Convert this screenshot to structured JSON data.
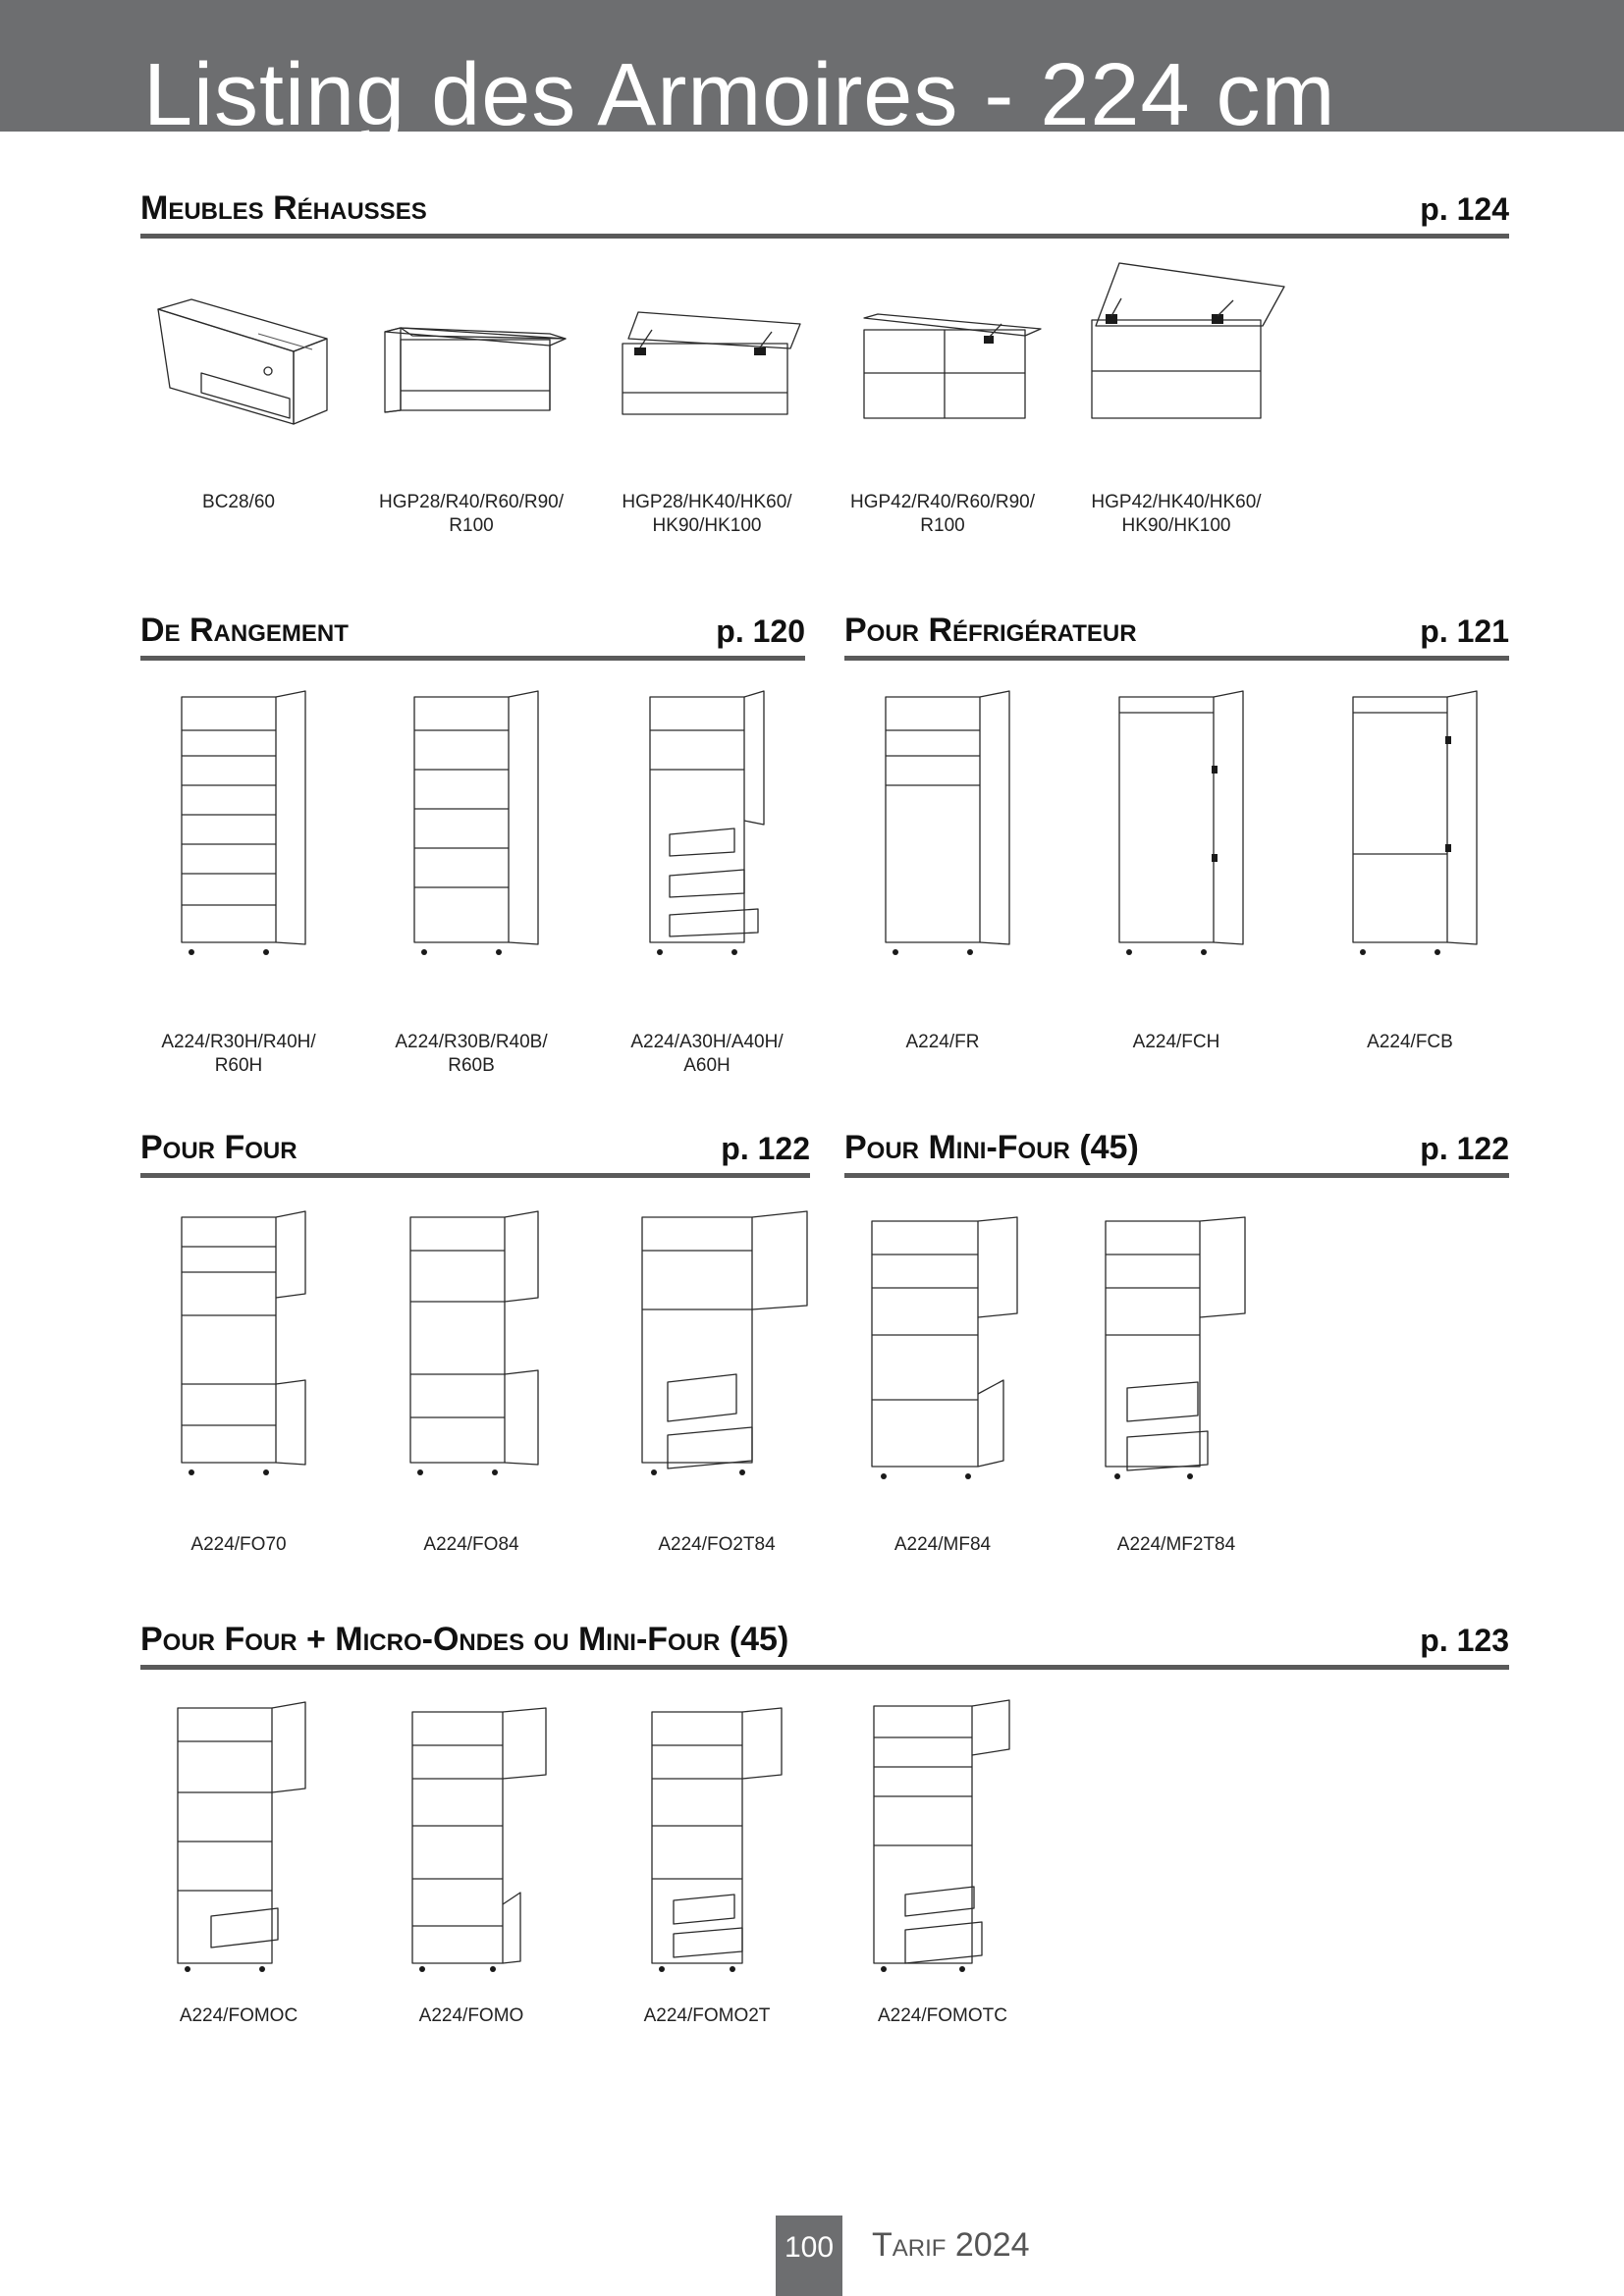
{
  "page": {
    "title": "Listing des Armoires - 224 cm",
    "page_number": "100",
    "footer_label": "Tarif 2024"
  },
  "sections": {
    "rehausses": {
      "title": "Meubles Réhausses",
      "page_ref": "p. 124",
      "items": [
        {
          "code": "BC28/60",
          "icon": "drawer-box-icon"
        },
        {
          "code": "HGP28/R40/R60/R90/\nR100",
          "icon": "lift-up-wall-unit-icon"
        },
        {
          "code": "HGP28/HK40/HK60/\nHK90/HK100",
          "icon": "lift-up-wall-unit-hinges-icon"
        },
        {
          "code": "HGP42/R40/R60/R90/\nR100",
          "icon": "tall-lift-up-wall-unit-icon"
        },
        {
          "code": "HGP42/HK40/HK60/\nHK90/HK100",
          "icon": "tall-lift-up-wall-unit-hinges-icon"
        }
      ]
    },
    "rangement": {
      "title": "De Rangement",
      "page_ref": "p. 120",
      "items": [
        {
          "code": "A224/R30H/R40H/\nR60H",
          "icon": "tall-cabinet-shelves-icon"
        },
        {
          "code": "A224/R30B/R40B/\nR60B",
          "icon": "tall-cabinet-shelves-icon"
        },
        {
          "code": "A224/A30H/A40H/\nA60H",
          "icon": "tall-cabinet-pullouts-icon"
        }
      ]
    },
    "refrigerateur": {
      "title": "Pour Réfrigérateur",
      "page_ref": "p. 121",
      "items": [
        {
          "code": "A224/FR",
          "icon": "fridge-cabinet-icon"
        },
        {
          "code": "A224/FCH",
          "icon": "fridge-cabinet-icon"
        },
        {
          "code": "A224/FCB",
          "icon": "fridge-cabinet-icon"
        }
      ]
    },
    "four": {
      "title": "Pour Four",
      "page_ref": "p. 122",
      "items": [
        {
          "code": "A224/FO70",
          "icon": "oven-cabinet-icon"
        },
        {
          "code": "A224/FO84",
          "icon": "oven-cabinet-icon"
        },
        {
          "code": "A224/FO2T84",
          "icon": "oven-cabinet-drawers-icon"
        }
      ]
    },
    "mini_four": {
      "title": "Pour Mini-Four (45)",
      "page_ref": "p. 122",
      "items": [
        {
          "code": "A224/MF84",
          "icon": "mini-oven-cabinet-icon"
        },
        {
          "code": "A224/MF2T84",
          "icon": "mini-oven-cabinet-drawers-icon"
        }
      ]
    },
    "four_micro": {
      "title": "Pour Four + Micro-Ondes ou Mini-Four (45)",
      "page_ref": "p. 123",
      "items": [
        {
          "code": "A224/FOMOC",
          "icon": "oven-microwave-cabinet-icon"
        },
        {
          "code": "A224/FOMO",
          "icon": "oven-microwave-cabinet-icon"
        },
        {
          "code": "A224/FOMO2T",
          "icon": "oven-microwave-cabinet-drawers-icon"
        },
        {
          "code": "A224/FOMOTC",
          "icon": "oven-microwave-cabinet-drawers-icon"
        }
      ]
    }
  }
}
